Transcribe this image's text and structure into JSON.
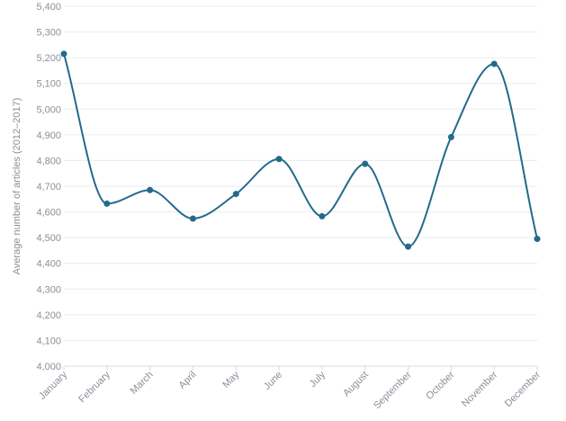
{
  "chart_data": {
    "type": "line",
    "title": "",
    "xlabel": "",
    "ylabel": "Average number of articles (2012–2017)",
    "ylim": [
      4000,
      5400
    ],
    "yticks": [
      4000,
      4100,
      4200,
      4300,
      4400,
      4500,
      4600,
      4700,
      4800,
      4900,
      5000,
      5100,
      5200,
      5300,
      5400
    ],
    "ytick_labels": [
      "4,000",
      "4,100",
      "4,200",
      "4,300",
      "4,400",
      "4,500",
      "4,600",
      "4,700",
      "4,800",
      "4,900",
      "5,000",
      "5,100",
      "5,200",
      "5,300",
      "5,400"
    ],
    "categories": [
      "January",
      "February",
      "March",
      "April",
      "May",
      "June",
      "July",
      "August",
      "September",
      "October",
      "November",
      "December"
    ],
    "series": [
      {
        "values": [
          5215,
          4632,
          4685,
          4574,
          4670,
          4806,
          4583,
          4787,
          4465,
          4891,
          5176,
          4495
        ],
        "color": "#236a8b"
      }
    ],
    "grid": true,
    "legend": "none",
    "smooth": true
  }
}
